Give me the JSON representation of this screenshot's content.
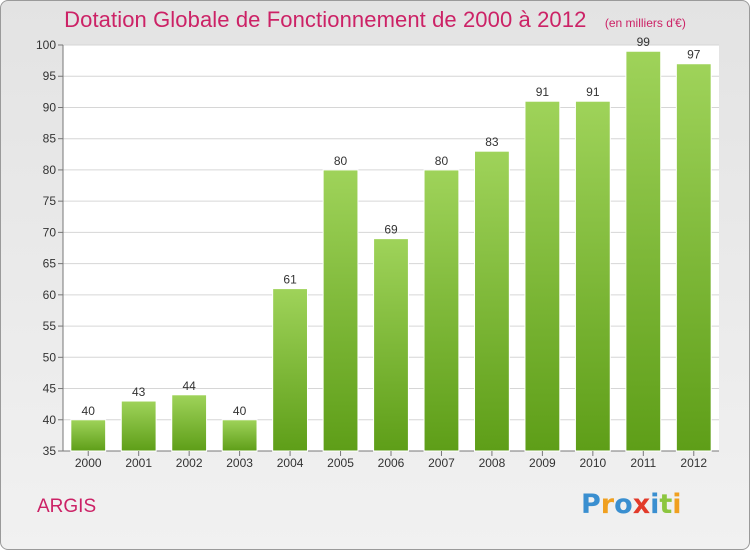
{
  "header": {
    "title": "Dotation Globale de Fonctionnement de 2000 à 2012",
    "unit": "(en milliers d'€)"
  },
  "footer": {
    "commune": "ARGIS",
    "logo_text": "Proxiti",
    "logo_letters": [
      {
        "char": "P",
        "color": "#3a8fd0"
      },
      {
        "char": "r",
        "color": "#f0a020"
      },
      {
        "char": "o",
        "color": "#3a8fd0"
      },
      {
        "char": "x",
        "color": "#e23a2a"
      },
      {
        "char": "i",
        "color": "#3a8fd0"
      },
      {
        "char": "t",
        "color": "#8cc63f"
      },
      {
        "char": "i",
        "color": "#f0a020"
      }
    ]
  },
  "colors": {
    "bar_top": "#9fd35a",
    "bar_bottom": "#5e9e18",
    "accent": "#cc2266",
    "grid": "#d6d6d6"
  },
  "chart_data": {
    "type": "bar",
    "categories": [
      "2000",
      "2001",
      "2002",
      "2003",
      "2004",
      "2005",
      "2006",
      "2007",
      "2008",
      "2009",
      "2010",
      "2011",
      "2012"
    ],
    "values": [
      40,
      43,
      44,
      40,
      61,
      80,
      69,
      80,
      83,
      91,
      91,
      99,
      97
    ],
    "ylim": [
      35,
      100
    ],
    "yticks": [
      35,
      40,
      45,
      50,
      55,
      60,
      65,
      70,
      75,
      80,
      85,
      90,
      95,
      100
    ],
    "grid": true,
    "legend": "none"
  }
}
